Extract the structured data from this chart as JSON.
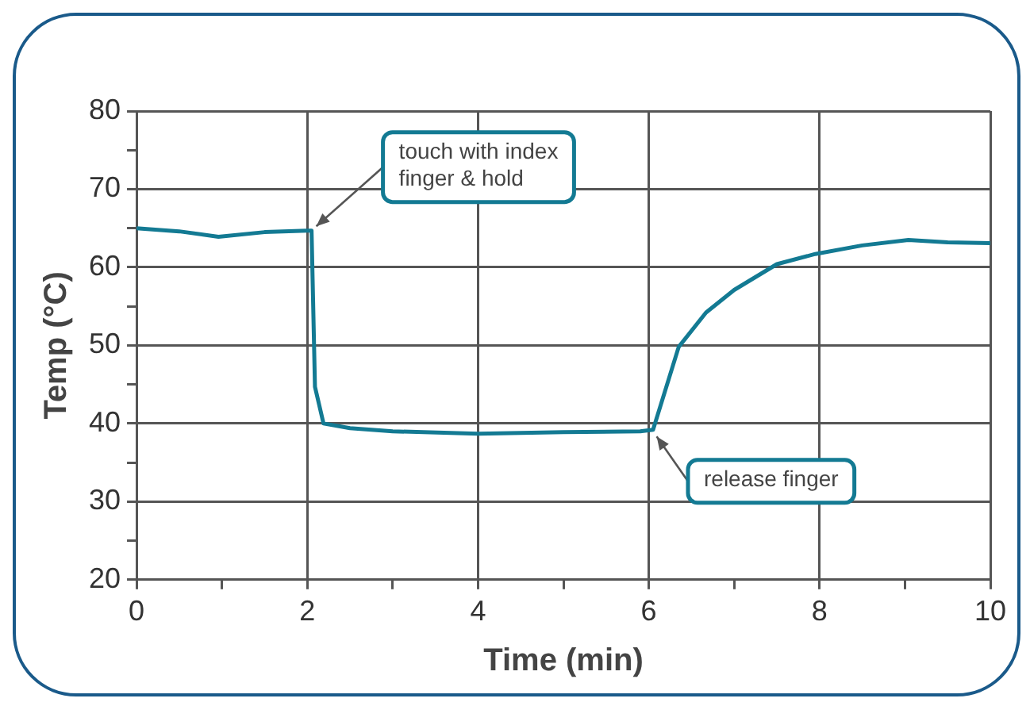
{
  "chart_data": {
    "type": "line",
    "xlabel": "Time (min)",
    "ylabel": "Temp (°C)",
    "x": [
      0,
      0.5,
      0.96,
      1.5,
      2.0,
      2.05,
      2.09,
      2.19,
      2.5,
      3,
      4,
      5,
      5.9,
      6.05,
      6.35,
      6.67,
      7.0,
      7.5,
      7.95,
      8.5,
      9.04,
      9.5,
      10
    ],
    "series": [
      {
        "color": "#137a93",
        "values": [
          65,
          64.6,
          63.9,
          64.5,
          64.7,
          64.7,
          44.7,
          40,
          39.4,
          39,
          38.7,
          38.9,
          39,
          39.2,
          49.8,
          54.2,
          57.1,
          60.4,
          61.7,
          62.8,
          63.5,
          63.2,
          63.1
        ]
      }
    ],
    "xlim": [
      0,
      10
    ],
    "xticks": [
      0,
      {
        "value": 1,
        "label": null
      },
      2,
      {
        "value": 3,
        "label": null
      },
      4,
      {
        "value": 5,
        "label": null
      },
      6,
      {
        "value": 7,
        "label": null
      },
      8,
      {
        "value": 9,
        "label": null
      },
      10
    ],
    "ylim": [
      20,
      80
    ],
    "yticks": [
      20,
      {
        "value": 25,
        "label": null
      },
      30,
      {
        "value": 35,
        "label": null
      },
      40,
      {
        "value": 45,
        "label": null
      },
      50,
      {
        "value": 55,
        "label": null
      },
      60,
      {
        "value": 65,
        "label": null
      },
      70,
      {
        "value": 75,
        "label": null
      },
      80
    ],
    "grid": true,
    "legend": false,
    "marker": "none",
    "line_style": "solid",
    "annotations": [
      {
        "text": "touch with index\nfinger & hold",
        "x": 2.05,
        "y": 64.7
      },
      {
        "text": "release finger",
        "x": 6.05,
        "y": 39
      }
    ]
  }
}
